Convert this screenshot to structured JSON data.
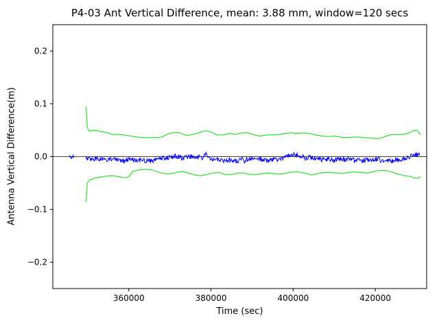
{
  "figure": {
    "background": "#ffffff"
  },
  "chart_data": {
    "type": "line",
    "title": "P4-03 Ant Vertical Difference, mean: 3.88 mm, window=120 secs",
    "xlabel": "Time (sec)",
    "ylabel": "Antenna Vertical Difference(m)",
    "xlim": [
      341500,
      432500
    ],
    "ylim": [
      -0.25,
      0.25
    ],
    "grid": false,
    "legend": "none",
    "mean_mm": 3.88,
    "window_secs": 120,
    "x_ticks": [
      {
        "value": 360000,
        "label": "360000"
      },
      {
        "value": 380000,
        "label": "380000"
      },
      {
        "value": 400000,
        "label": "400000"
      },
      {
        "value": 420000,
        "label": "420000"
      }
    ],
    "y_ticks": [
      {
        "value": 0.2,
        "label": "0.2"
      },
      {
        "value": 0.1,
        "label": "0.1"
      },
      {
        "value": 0.0,
        "label": "0.0"
      },
      {
        "value": -0.1,
        "label": "−0.1"
      },
      {
        "value": -0.2,
        "label": "−0.2"
      }
    ],
    "zero_line": {
      "y": 0.0,
      "color": "#000000",
      "width": 0.8
    },
    "series": [
      {
        "name": "upper-window-bound",
        "color": "#00dd00",
        "type": "line",
        "width": 1,
        "points": [
          [
            349600,
            0.095
          ],
          [
            349900,
            0.055
          ],
          [
            350400,
            0.048
          ],
          [
            351500,
            0.05
          ],
          [
            353000,
            0.048
          ],
          [
            354500,
            0.046
          ],
          [
            356000,
            0.042
          ],
          [
            357500,
            0.042
          ],
          [
            359000,
            0.041
          ],
          [
            360500,
            0.039
          ],
          [
            362000,
            0.037
          ],
          [
            363500,
            0.036
          ],
          [
            365000,
            0.036
          ],
          [
            366500,
            0.036
          ],
          [
            368000,
            0.037
          ],
          [
            369500,
            0.043
          ],
          [
            371000,
            0.046
          ],
          [
            372500,
            0.045
          ],
          [
            374000,
            0.04
          ],
          [
            375500,
            0.042
          ],
          [
            377000,
            0.045
          ],
          [
            378500,
            0.049
          ],
          [
            380000,
            0.047
          ],
          [
            381500,
            0.041
          ],
          [
            383000,
            0.041
          ],
          [
            384500,
            0.044
          ],
          [
            386000,
            0.042
          ],
          [
            387500,
            0.045
          ],
          [
            389000,
            0.045
          ],
          [
            390500,
            0.041
          ],
          [
            392000,
            0.039
          ],
          [
            393500,
            0.041
          ],
          [
            395000,
            0.041
          ],
          [
            396500,
            0.042
          ],
          [
            398000,
            0.044
          ],
          [
            399500,
            0.045
          ],
          [
            401000,
            0.044
          ],
          [
            402500,
            0.045
          ],
          [
            404000,
            0.044
          ],
          [
            405500,
            0.041
          ],
          [
            407000,
            0.039
          ],
          [
            408500,
            0.038
          ],
          [
            410000,
            0.039
          ],
          [
            411500,
            0.037
          ],
          [
            413000,
            0.036
          ],
          [
            414500,
            0.037
          ],
          [
            416000,
            0.037
          ],
          [
            417500,
            0.036
          ],
          [
            419000,
            0.035
          ],
          [
            420500,
            0.034
          ],
          [
            422000,
            0.037
          ],
          [
            423500,
            0.041
          ],
          [
            425000,
            0.042
          ],
          [
            426500,
            0.042
          ],
          [
            428000,
            0.044
          ],
          [
            429200,
            0.049
          ],
          [
            430200,
            0.05
          ],
          [
            431000,
            0.041
          ]
        ]
      },
      {
        "name": "lower-window-bound",
        "color": "#00dd00",
        "type": "line",
        "width": 1,
        "points": [
          [
            349600,
            -0.086
          ],
          [
            349900,
            -0.05
          ],
          [
            350400,
            -0.045
          ],
          [
            351500,
            -0.041
          ],
          [
            353000,
            -0.039
          ],
          [
            354500,
            -0.037
          ],
          [
            356000,
            -0.036
          ],
          [
            357500,
            -0.038
          ],
          [
            359000,
            -0.04
          ],
          [
            360000,
            -0.038
          ],
          [
            361000,
            -0.028
          ],
          [
            362500,
            -0.025
          ],
          [
            364000,
            -0.024
          ],
          [
            365500,
            -0.025
          ],
          [
            367000,
            -0.029
          ],
          [
            368500,
            -0.032
          ],
          [
            370000,
            -0.033
          ],
          [
            371500,
            -0.03
          ],
          [
            373000,
            -0.028
          ],
          [
            374500,
            -0.031
          ],
          [
            376000,
            -0.035
          ],
          [
            377500,
            -0.036
          ],
          [
            379000,
            -0.034
          ],
          [
            380500,
            -0.031
          ],
          [
            382000,
            -0.03
          ],
          [
            383500,
            -0.034
          ],
          [
            385000,
            -0.034
          ],
          [
            386500,
            -0.031
          ],
          [
            388000,
            -0.031
          ],
          [
            389500,
            -0.034
          ],
          [
            391000,
            -0.034
          ],
          [
            392500,
            -0.032
          ],
          [
            394000,
            -0.031
          ],
          [
            395500,
            -0.033
          ],
          [
            397000,
            -0.033
          ],
          [
            398500,
            -0.031
          ],
          [
            400000,
            -0.029
          ],
          [
            401500,
            -0.029
          ],
          [
            403000,
            -0.032
          ],
          [
            404500,
            -0.035
          ],
          [
            406000,
            -0.032
          ],
          [
            407500,
            -0.03
          ],
          [
            409000,
            -0.03
          ],
          [
            410500,
            -0.031
          ],
          [
            412000,
            -0.032
          ],
          [
            413500,
            -0.03
          ],
          [
            415000,
            -0.029
          ],
          [
            416500,
            -0.03
          ],
          [
            418000,
            -0.031
          ],
          [
            419500,
            -0.029
          ],
          [
            421000,
            -0.026
          ],
          [
            422500,
            -0.026
          ],
          [
            424000,
            -0.029
          ],
          [
            425500,
            -0.033
          ],
          [
            427000,
            -0.036
          ],
          [
            428200,
            -0.037
          ],
          [
            429400,
            -0.04
          ],
          [
            430400,
            -0.041
          ],
          [
            431000,
            -0.038
          ]
        ]
      },
      {
        "name": "antenna-vertical-difference",
        "color": "#0000ff",
        "type": "noisy-line",
        "width": 1,
        "noise_amplitude": 0.0045,
        "segments": [
          [
            [
              345600,
              -0.001
            ],
            [
              345900,
              -0.004
            ],
            [
              346300,
              0.001
            ],
            [
              346600,
              -0.002
            ]
          ],
          [
            [
              349600,
              -0.003
            ],
            [
              351000,
              -0.005
            ],
            [
              352500,
              -0.004
            ],
            [
              354000,
              -0.007
            ],
            [
              355500,
              -0.005
            ],
            [
              357000,
              -0.006
            ],
            [
              358500,
              -0.008
            ],
            [
              360000,
              -0.006
            ],
            [
              361500,
              -0.007
            ],
            [
              363000,
              -0.006
            ],
            [
              364500,
              -0.008
            ],
            [
              366000,
              -0.009
            ],
            [
              367000,
              -0.004
            ],
            [
              368000,
              -0.002
            ],
            [
              369000,
              -0.004
            ],
            [
              370000,
              -0.001
            ],
            [
              371000,
              0.001
            ],
            [
              372000,
              0.0
            ],
            [
              373000,
              -0.003
            ],
            [
              374000,
              -0.001
            ],
            [
              375000,
              0.001
            ],
            [
              376000,
              -0.002
            ],
            [
              377000,
              0.0
            ],
            [
              378000,
              -0.004
            ],
            [
              378800,
              0.006
            ],
            [
              379500,
              -0.002
            ],
            [
              380500,
              -0.005
            ],
            [
              381500,
              -0.004
            ],
            [
              382500,
              -0.007
            ],
            [
              383500,
              -0.008
            ],
            [
              384500,
              -0.006
            ],
            [
              385500,
              -0.009
            ],
            [
              386500,
              -0.008
            ],
            [
              387500,
              -0.005
            ],
            [
              388200,
              -0.009
            ],
            [
              389000,
              -0.004
            ],
            [
              390000,
              -0.005
            ],
            [
              391000,
              -0.007
            ],
            [
              392000,
              -0.004
            ],
            [
              393000,
              -0.007
            ],
            [
              394000,
              -0.008
            ],
            [
              395000,
              -0.005
            ],
            [
              396000,
              -0.006
            ],
            [
              397000,
              -0.004
            ],
            [
              398000,
              -0.002
            ],
            [
              399000,
              0.002
            ],
            [
              400000,
              0.004
            ],
            [
              401000,
              0.003
            ],
            [
              402000,
              0.001
            ],
            [
              403000,
              -0.003
            ],
            [
              404000,
              -0.001
            ],
            [
              405000,
              -0.004
            ],
            [
              406000,
              -0.003
            ],
            [
              407000,
              -0.006
            ],
            [
              408000,
              -0.004
            ],
            [
              409000,
              -0.005
            ],
            [
              410000,
              -0.007
            ],
            [
              411000,
              -0.005
            ],
            [
              412000,
              -0.004
            ],
            [
              413000,
              -0.006
            ],
            [
              414000,
              -0.005
            ],
            [
              415000,
              -0.007
            ],
            [
              416000,
              -0.006
            ],
            [
              417000,
              -0.008
            ],
            [
              418000,
              -0.006
            ],
            [
              419000,
              -0.007
            ],
            [
              420000,
              -0.005
            ],
            [
              421000,
              -0.006
            ],
            [
              422000,
              -0.008
            ],
            [
              423000,
              -0.007
            ],
            [
              424000,
              -0.009
            ],
            [
              425000,
              -0.006
            ],
            [
              426000,
              -0.007
            ],
            [
              427000,
              -0.005
            ],
            [
              428000,
              -0.002
            ],
            [
              429000,
              0.003
            ],
            [
              430000,
              0.005
            ],
            [
              430800,
              0.002
            ]
          ]
        ]
      }
    ]
  }
}
